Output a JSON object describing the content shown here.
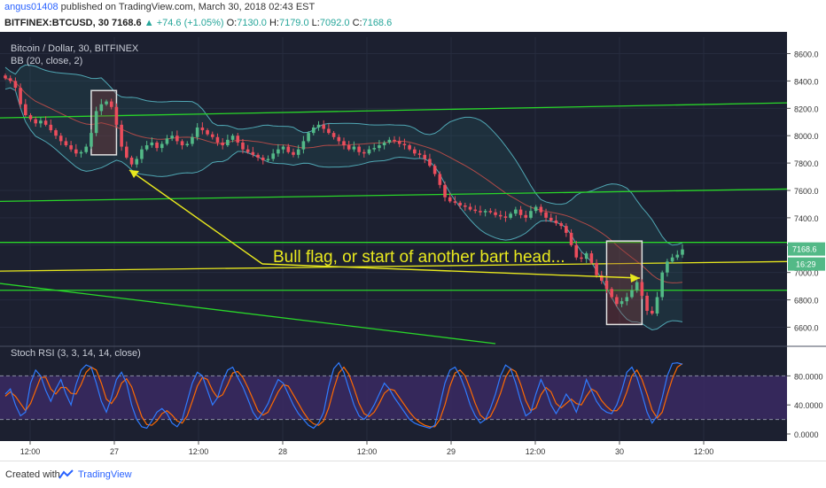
{
  "header": {
    "user": "angus01408",
    "published": "published on TradingView.com, March 30, 2018 02:43 EST",
    "symbol": "BITFINEX:BTCUSD, 30",
    "last": "7168.6",
    "change": "+74.6 (+1.05%)",
    "o_label": "O:",
    "o": "7130.0",
    "h_label": "H:",
    "h": "7179.0",
    "l_label": "L:",
    "l": "7092.0",
    "c_label": "C:",
    "c": "7168.6"
  },
  "legend": {
    "title": "Bitcoin / Dollar, 30, BITFINEX",
    "bb": "BB (20, close, 2)",
    "stoch": "Stoch RSI (3, 3, 14, 14, close)"
  },
  "annotation": "Bull flag, or start of another bart head...",
  "price_badge": "7168.6",
  "time_badge": "16:29",
  "footer": {
    "created": "Created with",
    "brand": "TradingView"
  },
  "colors": {
    "bg": "#1c2030",
    "up": "#53b987",
    "down": "#eb4d5c",
    "bb_fill": "#2a6b6f",
    "bb_band": "#50a7b4",
    "bb_basis": "#b04a48",
    "trend_green": "#29d629",
    "annotation_yellow": "#e8e81e",
    "stoch_k": "#2f7bff",
    "stoch_d": "#ff6a00",
    "stoch_fill": "#3a2a63"
  },
  "chart_data": {
    "type": "candlestick",
    "price_axis": {
      "min": 6480,
      "max": 8720,
      "ticks": [
        6600,
        6800,
        7000,
        7200,
        7400,
        7600,
        7800,
        8000,
        8200,
        8400,
        8600
      ],
      "tick_labels": [
        "6600.0",
        "6800.0",
        "7000.0",
        "7200.0",
        "7400.0",
        "7600.0",
        "7800.0",
        "8000.0",
        "8200.0",
        "8400.0",
        "8600.0"
      ]
    },
    "time_axis": {
      "labels": [
        "12:00",
        "27",
        "12:00",
        "28",
        "12:00",
        "29",
        "12:00",
        "30",
        "12:00"
      ]
    },
    "close_series": [
      8420,
      8400,
      8350,
      8230,
      8150,
      8120,
      8090,
      8110,
      8080,
      8040,
      8000,
      7960,
      7930,
      7900,
      7870,
      7880,
      7920,
      8020,
      8180,
      8230,
      8250,
      8210,
      8080,
      7920,
      7840,
      7790,
      7830,
      7900,
      7930,
      7950,
      7910,
      7940,
      7980,
      8000,
      7960,
      7930,
      7940,
      7990,
      8060,
      8040,
      8010,
      7990,
      7950,
      7930,
      7970,
      8000,
      7950,
      7900,
      7880,
      7860,
      7840,
      7820,
      7830,
      7870,
      7900,
      7920,
      7880,
      7860,
      7900,
      7960,
      8020,
      8060,
      8080,
      8050,
      8020,
      7990,
      7960,
      7930,
      7900,
      7920,
      7880,
      7870,
      7900,
      7910,
      7930,
      7950,
      7970,
      7960,
      7940,
      7930,
      7900,
      7870,
      7860,
      7830,
      7780,
      7720,
      7640,
      7550,
      7520,
      7510,
      7490,
      7480,
      7460,
      7450,
      7440,
      7450,
      7440,
      7420,
      7410,
      7400,
      7430,
      7460,
      7420,
      7400,
      7450,
      7480,
      7440,
      7400,
      7380,
      7360,
      7340,
      7290,
      7200,
      7110,
      7100,
      7140,
      7070,
      6980,
      6940,
      6880,
      6820,
      6770,
      6790,
      6820,
      6870,
      6930,
      6830,
      6720,
      6700,
      6820,
      7000,
      7080,
      7110,
      7130,
      7168.6
    ],
    "trend_lines_green": [
      {
        "p1": [
          0,
          8130
        ],
        "p2": [
          137,
          8240
        ]
      },
      {
        "p1": [
          0,
          7520
        ],
        "p2": [
          137,
          7610
        ]
      },
      {
        "p1": [
          0,
          7220
        ],
        "p2": [
          137,
          7220
        ]
      },
      {
        "p1": [
          0,
          6870
        ],
        "p2": [
          137,
          6870
        ]
      },
      {
        "p1": [
          0,
          6920
        ],
        "p2": [
          97,
          6480
        ]
      }
    ],
    "trend_line_yellow": {
      "p1": [
        0,
        7010
      ],
      "p2": [
        137,
        7080
      ]
    },
    "highlight_boxes": [
      {
        "x1": 17,
        "x2": 22,
        "y1": 7860,
        "y2": 8330
      },
      {
        "x1": 119,
        "x2": 126,
        "y1": 6620,
        "y2": 7230
      }
    ],
    "stoch_axis": {
      "ticks": [
        0,
        40,
        80
      ],
      "tick_labels": [
        "0.0000",
        "40.0000",
        "80.0000"
      ],
      "band_upper": 80,
      "band_lower": 20
    },
    "stoch_k": [
      55,
      62,
      40,
      25,
      30,
      70,
      88,
      80,
      60,
      45,
      62,
      75,
      55,
      40,
      68,
      88,
      95,
      92,
      70,
      45,
      30,
      50,
      75,
      85,
      70,
      40,
      20,
      10,
      8,
      18,
      30,
      35,
      28,
      15,
      10,
      20,
      45,
      70,
      85,
      80,
      60,
      40,
      50,
      72,
      88,
      92,
      78,
      65,
      48,
      30,
      20,
      30,
      42,
      60,
      75,
      70,
      55,
      40,
      28,
      20,
      12,
      8,
      15,
      30,
      65,
      90,
      98,
      85,
      62,
      40,
      25,
      20,
      28,
      40,
      55,
      70,
      62,
      50,
      40,
      30,
      20,
      15,
      12,
      10,
      8,
      12,
      40,
      70,
      88,
      92,
      80,
      62,
      40,
      25,
      15,
      20,
      35,
      55,
      80,
      95,
      90,
      70,
      45,
      25,
      30,
      55,
      75,
      60,
      40,
      28,
      40,
      55,
      45,
      30,
      50,
      75,
      60,
      45,
      35,
      30,
      28,
      40,
      60,
      85,
      92,
      78,
      55,
      30,
      15,
      25,
      50,
      80,
      97,
      98,
      96
    ],
    "stoch_d": [
      52,
      58,
      52,
      42,
      32,
      42,
      60,
      78,
      78,
      62,
      55,
      64,
      64,
      56,
      55,
      68,
      85,
      92,
      88,
      70,
      48,
      42,
      52,
      70,
      76,
      65,
      44,
      24,
      13,
      12,
      18,
      28,
      32,
      26,
      18,
      15,
      25,
      45,
      66,
      78,
      75,
      60,
      50,
      54,
      68,
      84,
      86,
      78,
      64,
      48,
      32,
      26,
      30,
      44,
      58,
      68,
      66,
      54,
      42,
      30,
      20,
      14,
      12,
      18,
      36,
      62,
      84,
      92,
      82,
      63,
      42,
      28,
      24,
      30,
      42,
      56,
      62,
      60,
      50,
      40,
      30,
      22,
      16,
      12,
      10,
      10,
      20,
      40,
      66,
      84,
      88,
      80,
      62,
      42,
      26,
      20,
      24,
      38,
      56,
      78,
      90,
      86,
      68,
      46,
      32,
      36,
      54,
      64,
      58,
      42,
      36,
      42,
      48,
      42,
      40,
      52,
      62,
      58,
      46,
      38,
      32,
      32,
      40,
      58,
      80,
      88,
      75,
      55,
      33,
      22,
      30,
      54,
      76,
      92,
      97
    ]
  }
}
